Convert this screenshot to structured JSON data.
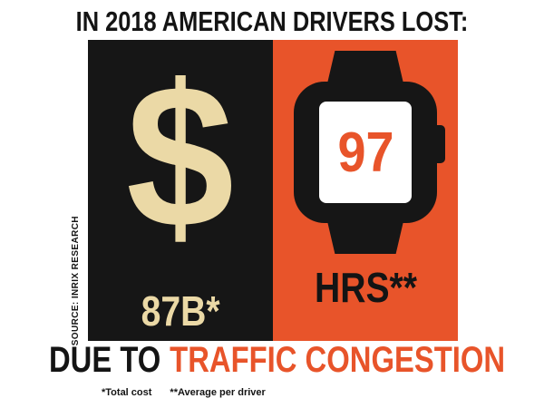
{
  "title": "IN 2018 AMERICAN DRIVERS LOST:",
  "source_label": "SOURCE:  INRIX RESEARCH",
  "left_panel": {
    "symbol": "$",
    "value": "87B*"
  },
  "right_panel": {
    "watch_value": "97",
    "value": "HRS**"
  },
  "footer": {
    "due_to": "DUE TO",
    "highlight": "TRAFFIC CONGESTION",
    "footnote_1": "*Total cost",
    "footnote_2": "**Average per driver"
  },
  "colors": {
    "orange": "#E8542A",
    "black": "#161616",
    "cream": "#EBD9A6",
    "white": "#FFFFFF"
  },
  "chart_data": {
    "type": "table",
    "title": "IN 2018 AMERICAN DRIVERS LOST:",
    "categories": [
      "Money (*Total cost)",
      "Time (**Average per driver)"
    ],
    "values": [
      "$87B",
      "97 HRS"
    ],
    "annotations": [
      "DUE TO TRAFFIC CONGESTION",
      "SOURCE: INRIX RESEARCH"
    ],
    "legend_position": "none",
    "grid": false
  }
}
